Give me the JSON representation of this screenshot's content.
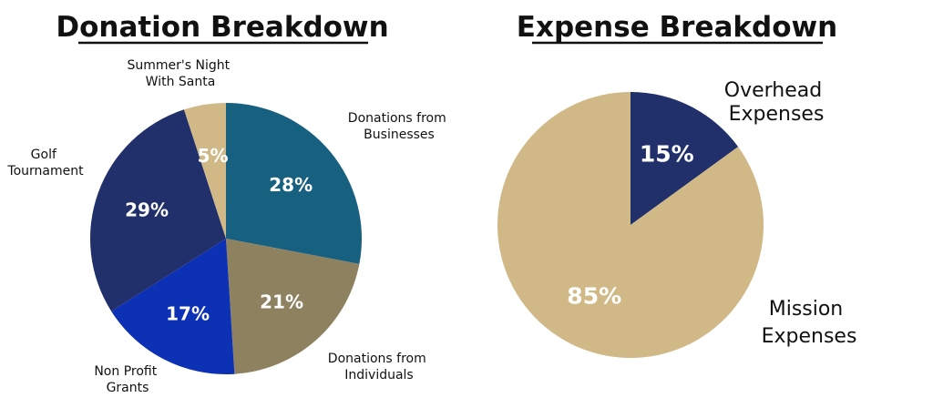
{
  "chart_data": [
    {
      "type": "pie",
      "title": "Donation Breakdown",
      "slices": [
        {
          "label": "Donations from Businesses",
          "value": 28,
          "value_label": "28%",
          "color": "#17607f"
        },
        {
          "label": "Donations from Individuals",
          "value": 21,
          "value_label": "21%",
          "color": "#8e8160"
        },
        {
          "label": "Non Profit Grants",
          "value": 17,
          "value_label": "17%",
          "color": "#0d31b5"
        },
        {
          "label": "Golf Tournament",
          "value": 29,
          "value_label": "29%",
          "color": "#21306b"
        },
        {
          "label": "Summer's Night With Santa",
          "value": 5,
          "value_label": "5%",
          "color": "#d0b887"
        }
      ]
    },
    {
      "type": "pie",
      "title": "Expense Breakdown",
      "slices": [
        {
          "label": "Overhead Expenses",
          "value": 15,
          "value_label": "15%",
          "color": "#21306b"
        },
        {
          "label": "Mission Expenses",
          "value": 85,
          "value_label": "85%",
          "color": "#d0b887"
        }
      ]
    }
  ]
}
